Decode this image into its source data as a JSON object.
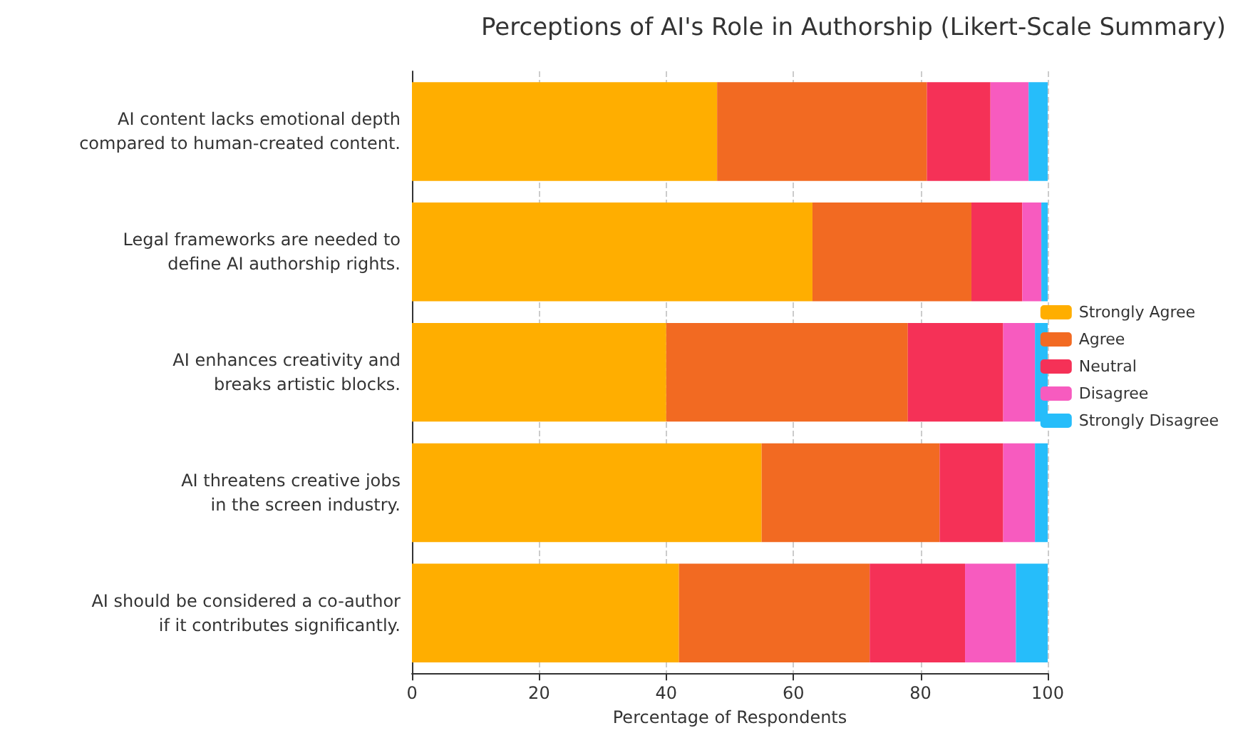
{
  "chart_data": {
    "type": "bar",
    "orientation": "horizontal",
    "stacked": true,
    "title": "Perceptions of AI's Role in Authorship (Likert-Scale Summary)",
    "xlabel": "Percentage of Respondents",
    "categories": [
      "AI content lacks emotional depth\ncompared to human-created content.",
      "Legal frameworks are needed to\ndefine AI authorship rights.",
      "AI enhances creativity and\nbreaks artistic blocks.",
      "AI threatens creative jobs\nin the screen industry.",
      "AI should be considered a co-author\nif it contributes significantly."
    ],
    "series": [
      {
        "name": "Strongly Agree",
        "color": "#ffae00",
        "values": [
          48,
          63,
          40,
          55,
          42
        ]
      },
      {
        "name": "Agree",
        "color": "#f26a22",
        "values": [
          33,
          25,
          38,
          28,
          30
        ]
      },
      {
        "name": "Neutral",
        "color": "#f53157",
        "values": [
          10,
          8,
          15,
          10,
          15
        ]
      },
      {
        "name": "Disagree",
        "color": "#f75bbf",
        "values": [
          6,
          3,
          5,
          5,
          8
        ]
      },
      {
        "name": "Strongly Disagree",
        "color": "#26bdfa",
        "values": [
          3,
          1,
          2,
          2,
          5
        ]
      }
    ],
    "xlim": [
      0,
      100
    ],
    "xticks": [
      0,
      20,
      40,
      60,
      80,
      100
    ],
    "grid": "x",
    "legend": "right"
  }
}
